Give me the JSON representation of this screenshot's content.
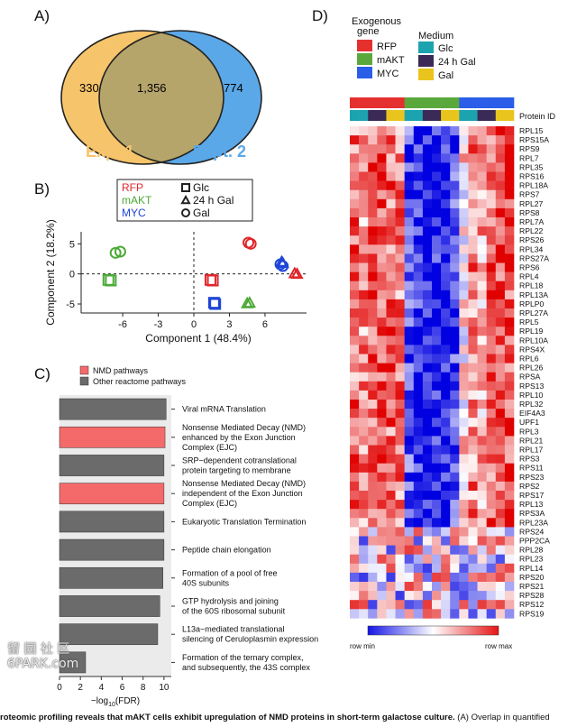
{
  "panels": {
    "a": "A)",
    "b": "B)",
    "c": "C)",
    "d": "D)"
  },
  "venn": {
    "left_only": "330",
    "overlap": "1,356",
    "right_only": "774",
    "left_label": "Expt.1",
    "right_label": "Expt. 2",
    "left_color": "#f6c46a",
    "right_color": "#5aa8e8",
    "overlap_color": "#b6a56a"
  },
  "chart_data": [
    {
      "type": "scatter",
      "panel": "B",
      "xlabel": "Component 1 (48.4%)",
      "ylabel": "Component 2 (18.2%)",
      "xticks": [
        "-6",
        "-3",
        "0",
        "3",
        "6"
      ],
      "yticks": [
        "5",
        "0",
        "-5"
      ],
      "xlim": [
        -9.5,
        9.5
      ],
      "ylim": [
        -6.5,
        7
      ],
      "legend_genes": [
        {
          "name": "RFP",
          "color": "#e0262b"
        },
        {
          "name": "mAKT",
          "color": "#4caa36"
        },
        {
          "name": "MYC",
          "color": "#1f46d6"
        }
      ],
      "legend_media": [
        {
          "name": "Glc",
          "marker": "square"
        },
        {
          "name": "24 h Gal",
          "marker": "triangle"
        },
        {
          "name": "Gal",
          "marker": "circle"
        }
      ],
      "points": [
        {
          "gene": "mAKT",
          "medium": "Gal",
          "x": -6.2,
          "y": 3.7
        },
        {
          "gene": "mAKT",
          "medium": "Gal",
          "x": -6.6,
          "y": 3.5
        },
        {
          "gene": "mAKT",
          "medium": "Glc",
          "x": -7.0,
          "y": -1.1
        },
        {
          "gene": "mAKT",
          "medium": "Glc",
          "x": -7.2,
          "y": -1.0
        },
        {
          "gene": "mAKT",
          "medium": "24 h Gal",
          "x": 4.5,
          "y": -4.9
        },
        {
          "gene": "mAKT",
          "medium": "24 h Gal",
          "x": 4.7,
          "y": -4.8
        },
        {
          "gene": "RFP",
          "medium": "Gal",
          "x": 4.6,
          "y": 5.2
        },
        {
          "gene": "RFP",
          "medium": "Gal",
          "x": 4.8,
          "y": 5.0
        },
        {
          "gene": "RFP",
          "medium": "Glc",
          "x": 1.4,
          "y": -1.0
        },
        {
          "gene": "RFP",
          "medium": "Glc",
          "x": 1.6,
          "y": -1.1
        },
        {
          "gene": "RFP",
          "medium": "24 h Gal",
          "x": 8.5,
          "y": 0.1
        },
        {
          "gene": "RFP",
          "medium": "24 h Gal",
          "x": 8.7,
          "y": 0.0
        },
        {
          "gene": "MYC",
          "medium": "Gal",
          "x": 7.3,
          "y": 1.6
        },
        {
          "gene": "MYC",
          "medium": "Gal",
          "x": 7.5,
          "y": 1.3
        },
        {
          "gene": "MYC",
          "medium": "Glc",
          "x": 1.7,
          "y": -4.8
        },
        {
          "gene": "MYC",
          "medium": "Glc",
          "x": 1.8,
          "y": -5.0
        },
        {
          "gene": "MYC",
          "medium": "24 h Gal",
          "x": 7.4,
          "y": 2.0
        },
        {
          "gene": "MYC",
          "medium": "24 h Gal",
          "x": 7.5,
          "y": 1.8
        }
      ]
    },
    {
      "type": "bar",
      "panel": "C",
      "orientation": "horizontal",
      "xlabel": "-log10(FDR)",
      "xticks": [
        "0",
        "2",
        "4",
        "6",
        "8",
        "10"
      ],
      "xlim": [
        0,
        10.7
      ],
      "legend": [
        {
          "name": "NMD pathways",
          "color": "#f46a6a"
        },
        {
          "name": "Other reactome pathways",
          "color": "#6b6b6b"
        }
      ],
      "categories": [
        "Viral mRNA Translation",
        "Nonsense Mediated Decay (NMD)\nenhanced by the Exon Junction\nComplex (EJC)",
        "SRP−dependent cotranslational\nprotein targeting to membrane",
        "Nonsense Mediated Decay (NMD)\nindependent of the Exon Junction\nComplex (EJC)",
        "Eukaryotic Translation Termination",
        "Peptide chain elongation",
        "Formation of a pool of free\n40S subunits",
        "GTP hydrolysis and joining\nof the 60S ribosomal subunit",
        "L13a−mediated translational\nsilencing of Ceruloplasmin expression",
        "Formation of the ternary complex,\nand subsequently, the 43S complex"
      ],
      "values": [
        10.2,
        10.1,
        10.0,
        10.0,
        10.0,
        10.0,
        9.9,
        9.6,
        9.4,
        2.5
      ],
      "nmd": [
        false,
        true,
        false,
        true,
        false,
        false,
        false,
        false,
        false,
        false
      ]
    },
    {
      "type": "heatmap",
      "panel": "D",
      "legend_gene_title": "Exogenous gene",
      "legend_medium_title": "Medium",
      "genes": [
        {
          "name": "RFP",
          "color": "#e53030"
        },
        {
          "name": "mAKT",
          "color": "#5aa83c"
        },
        {
          "name": "MYC",
          "color": "#2a5ee8"
        }
      ],
      "media": [
        {
          "name": "Glc",
          "color": "#1ca3b0"
        },
        {
          "name": "24 h Gal",
          "color": "#3a2a55"
        },
        {
          "name": "Gal",
          "color": "#e9c41c"
        }
      ],
      "column_genes": [
        "RFP",
        "RFP",
        "RFP",
        "RFP",
        "RFP",
        "RFP",
        "mAKT",
        "mAKT",
        "mAKT",
        "mAKT",
        "mAKT",
        "mAKT",
        "MYC",
        "MYC",
        "MYC",
        "MYC",
        "MYC",
        "MYC"
      ],
      "column_media": [
        "Glc",
        "Glc",
        "24 h Gal",
        "24 h Gal",
        "Gal",
        "Gal",
        "Glc",
        "Glc",
        "24 h Gal",
        "24 h Gal",
        "Gal",
        "Gal",
        "Glc",
        "Glc",
        "24 h Gal",
        "24 h Gal",
        "Gal",
        "Gal"
      ],
      "row_header": "Protein ID",
      "rows": [
        "RPL15",
        "RPS15A",
        "RPS9",
        "RPL7",
        "RPL35",
        "RPS16",
        "RPL18A",
        "RPS7",
        "RPL27",
        "RPS8",
        "RPL7A",
        "RPL22",
        "RPS26",
        "RPL34",
        "RPS27A",
        "RPS6",
        "RPL4",
        "RPL18",
        "RPL13A",
        "RPLP0",
        "RPL27A",
        "RPL5",
        "RPL19",
        "RPL10A",
        "RPS4X",
        "RPL6",
        "RPL26",
        "RPSA",
        "RPS13",
        "RPL10",
        "RPL32",
        "EIF4A3",
        "UPF1",
        "RPL3",
        "RPL21",
        "RPL17",
        "RPS3",
        "RPS11",
        "RPS23",
        "RPS2",
        "RPS17",
        "RPL13",
        "RPS3A",
        "RPL23A",
        "RPS24",
        "PPP2CA",
        "RPL28",
        "RPL23",
        "RPL14",
        "RPS20",
        "RPS21",
        "RPS28",
        "RPS12",
        "RPS19"
      ],
      "scale_min_label": "row min",
      "scale_max_label": "row max",
      "scale_colors": [
        "#1414e6",
        "#ffffff",
        "#e61414"
      ]
    }
  ],
  "caption": {
    "bold": "roteomic profiling reveals that mAKT cells exhibit upregulation of NMD proteins in short-term galactose culture.",
    "rest": " (A) Overlap in quantified"
  },
  "watermark": {
    "line1": "留 园 社 区",
    "line2": "6PARK.com"
  }
}
